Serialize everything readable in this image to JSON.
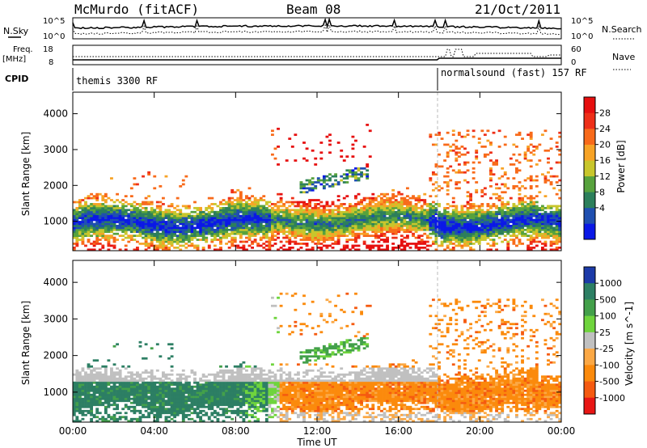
{
  "header": {
    "station": "McMurdo (fitACF)",
    "beam": "Beam 08",
    "date": "21/Oct/2011"
  },
  "top_panels": {
    "nsky_label": "N.Sky",
    "nsearch_label": "N.Search",
    "noise_ticks": [
      "10^5",
      "10^0"
    ],
    "freq_label": "Freq.",
    "freq_unit": "[MHz]",
    "freq_ticks": [
      "18",
      "8"
    ],
    "nave_label": "Nave",
    "nave_ticks": [
      "60",
      "0"
    ],
    "cpid_label": "CPID",
    "cpid_segments": [
      {
        "name": "themis 3300 RF",
        "start_hour": 0,
        "end_hour": 18
      },
      {
        "name": "normalsound (fast) 157 RF",
        "start_hour": 18,
        "end_hour": 24
      }
    ]
  },
  "chart_data": [
    {
      "type": "heatmap",
      "title": "Power",
      "xlabel": "Time UT",
      "ylabel": "Slant Range [km]",
      "x_ticks": [
        "00:00",
        "04:00",
        "08:00",
        "12:00",
        "16:00",
        "20:00",
        "00:00"
      ],
      "x_range_hours": [
        0,
        24
      ],
      "y_ticks": [
        1000,
        2000,
        3000,
        4000
      ],
      "ylim": [
        180,
        4600
      ],
      "colorbar": {
        "label": "Power [dB]",
        "ticks": [
          "28",
          "24",
          "20",
          "16",
          "12",
          "8",
          "4"
        ],
        "colors": [
          "#0a18e6",
          "#1f4fb0",
          "#2c7f5b",
          "#57a23d",
          "#c8c62c",
          "#f7a326",
          "#f86a1a",
          "#ee2f18",
          "#e60f0f"
        ]
      },
      "dominant_echo": {
        "range_km": [
          300,
          1700
        ],
        "peak_power_db": 28
      }
    },
    {
      "type": "heatmap",
      "title": "Velocity",
      "xlabel": "Time UT",
      "ylabel": "Slant Range [km]",
      "x_ticks": [
        "00:00",
        "04:00",
        "08:00",
        "12:00",
        "16:00",
        "20:00",
        "00:00"
      ],
      "x_range_hours": [
        0,
        24
      ],
      "y_ticks": [
        1000,
        2000,
        3000,
        4000
      ],
      "ylim": [
        180,
        4600
      ],
      "colorbar": {
        "label": "Velocity [m s^-1]",
        "ticks": [
          "1000",
          "500",
          "100",
          "25",
          "-25",
          "-100",
          "-500",
          "-1000"
        ],
        "colors": [
          "#1c3aa8",
          "#2d7f64",
          "#43a04a",
          "#6fd43d",
          "#c0c0c0",
          "#fba845",
          "#fb8a0c",
          "#f55a10",
          "#e81614"
        ]
      },
      "dominant_echo": {
        "toward_radar_hours": [
          0,
          9.5
        ],
        "away_from_radar_hours": [
          10,
          24
        ]
      }
    }
  ]
}
